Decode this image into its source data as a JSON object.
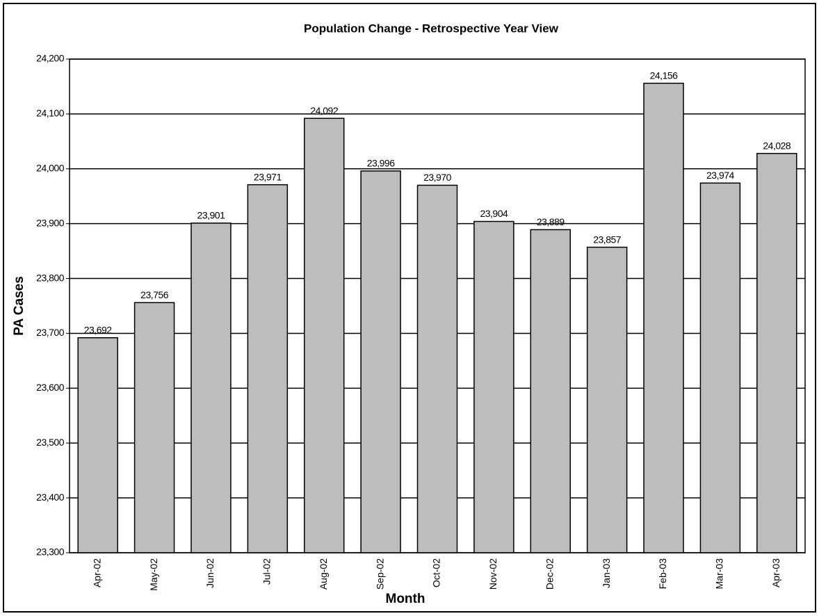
{
  "chart_data": {
    "type": "bar",
    "title": "Population Change - Retrospective Year View",
    "x_label": "Month",
    "y_label": "PA Cases",
    "categories": [
      "Apr-02",
      "May-02",
      "Jun-02",
      "Jul-02",
      "Aug-02",
      "Sep-02",
      "Oct-02",
      "Nov-02",
      "Dec-02",
      "Jan-03",
      "Feb-03",
      "Mar-03",
      "Apr-03"
    ],
    "values": [
      23692,
      23756,
      23901,
      23971,
      24092,
      23996,
      23970,
      23904,
      23889,
      23857,
      24156,
      23974,
      24028
    ],
    "value_labels": [
      "23,692",
      "23,756",
      "23,901",
      "23,971",
      "24,092",
      "23,996",
      "23,970",
      "23,904",
      "23,889",
      "23,857",
      "24,156",
      "23,974",
      "24,028"
    ],
    "color": "#bdbdbd",
    "ylim": [
      23300,
      24200
    ],
    "yticks": [
      {
        "value": 23300,
        "label": "23,300"
      },
      {
        "value": 23400,
        "label": "23,400"
      },
      {
        "value": 23500,
        "label": "23,500"
      },
      {
        "value": 23600,
        "label": "23,600"
      },
      {
        "value": 23700,
        "label": "23,700"
      },
      {
        "value": 23800,
        "label": "23,800"
      },
      {
        "value": 23900,
        "label": "23,900"
      },
      {
        "value": 24000,
        "label": "24,000"
      },
      {
        "value": 24100,
        "label": "24,100"
      },
      {
        "value": 24200,
        "label": "24,200"
      }
    ],
    "grid": true
  }
}
